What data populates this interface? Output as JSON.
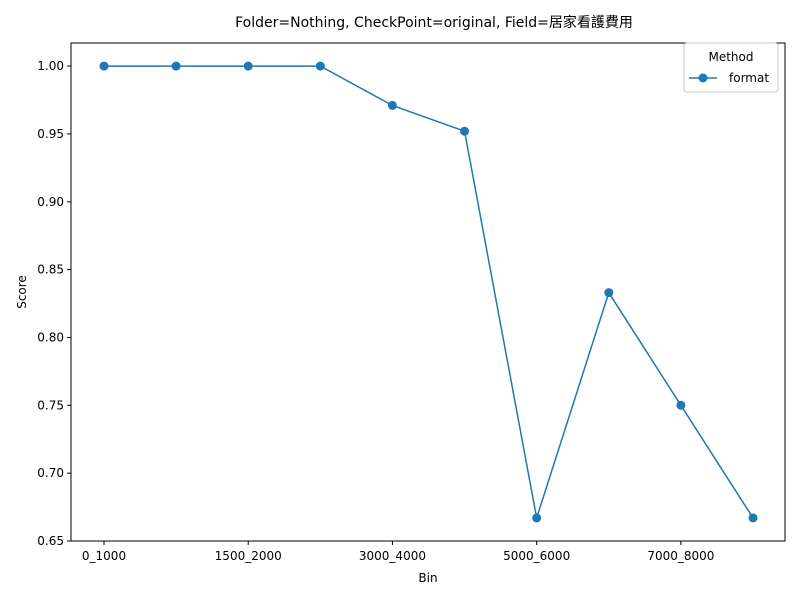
{
  "chart_data": {
    "type": "line",
    "title": "Folder=Nothing, CheckPoint=original, Field=居家看護費用",
    "xlabel": "Bin",
    "ylabel": "Score",
    "categories": [
      "0_1000",
      "",
      "1500_2000",
      "",
      "3000_4000",
      "",
      "5000_6000",
      "",
      "7000_8000",
      ""
    ],
    "x_tick_labels": [
      "0_1000",
      "1500_2000",
      "3000_4000",
      "5000_6000",
      "7000_8000"
    ],
    "y_ticks": [
      "0.65",
      "0.70",
      "0.75",
      "0.80",
      "0.85",
      "0.90",
      "0.95",
      "1.00"
    ],
    "ylim": [
      0.65,
      1.017
    ],
    "series": [
      {
        "name": "format",
        "color": "#1f77b4",
        "values": [
          1.0,
          1.0,
          1.0,
          1.0,
          0.971,
          0.952,
          0.667,
          0.833,
          0.75,
          0.667
        ]
      }
    ],
    "legend": {
      "title": "Method",
      "placement": "top-right"
    },
    "grid": false
  }
}
